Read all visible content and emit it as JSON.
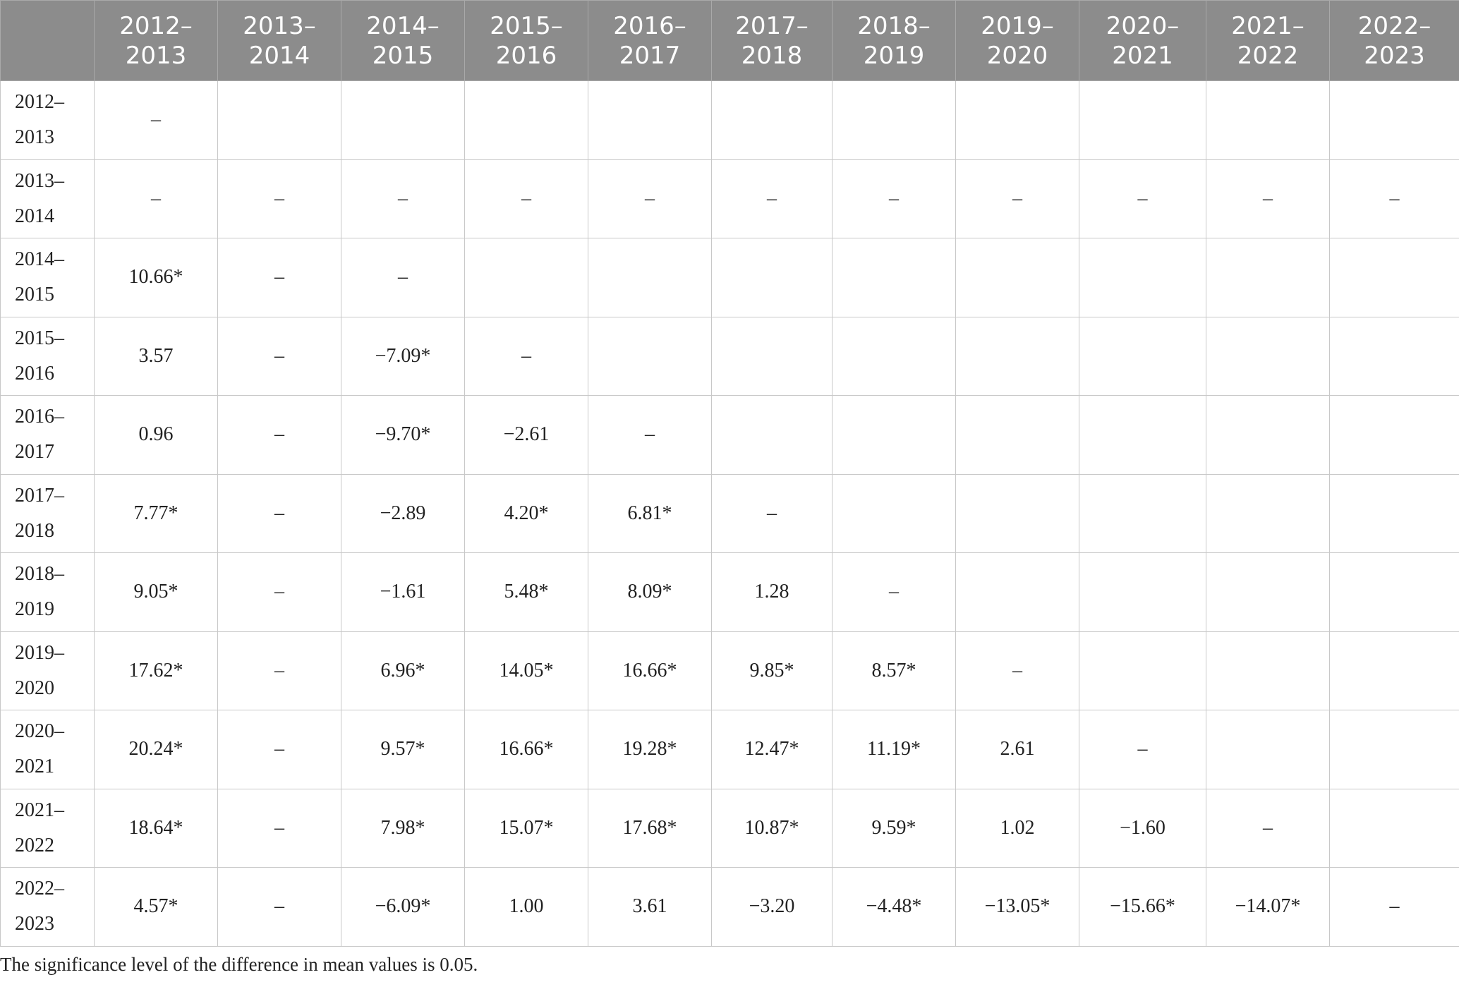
{
  "columns": [
    {
      "a": "",
      "b": ""
    },
    {
      "a": "2012–",
      "b": "2013"
    },
    {
      "a": "2013–",
      "b": "2014"
    },
    {
      "a": "2014–",
      "b": "2015"
    },
    {
      "a": "2015–",
      "b": "2016"
    },
    {
      "a": "2016–",
      "b": "2017"
    },
    {
      "a": "2017–",
      "b": "2018"
    },
    {
      "a": "2018–",
      "b": "2019"
    },
    {
      "a": "2019–",
      "b": "2020"
    },
    {
      "a": "2020–",
      "b": "2021"
    },
    {
      "a": "2021–",
      "b": "2022"
    },
    {
      "a": "2022–",
      "b": "2023"
    }
  ],
  "rows": [
    {
      "label_a": "2012–",
      "label_b": "2013",
      "cells": [
        "–",
        "",
        "",
        "",
        "",
        "",
        "",
        "",
        "",
        "",
        ""
      ]
    },
    {
      "label_a": "2013–",
      "label_b": "2014",
      "cells": [
        "–",
        "–",
        "–",
        "–",
        "–",
        "–",
        "–",
        "–",
        "–",
        "–",
        "–"
      ]
    },
    {
      "label_a": "2014–",
      "label_b": "2015",
      "cells": [
        "10.66*",
        "–",
        "–",
        "",
        "",
        "",
        "",
        "",
        "",
        "",
        ""
      ]
    },
    {
      "label_a": "2015–",
      "label_b": "2016",
      "cells": [
        "3.57",
        "–",
        "−7.09*",
        "–",
        "",
        "",
        "",
        "",
        "",
        "",
        ""
      ]
    },
    {
      "label_a": "2016–",
      "label_b": "2017",
      "cells": [
        "0.96",
        "–",
        "−9.70*",
        "−2.61",
        "–",
        "",
        "",
        "",
        "",
        "",
        ""
      ]
    },
    {
      "label_a": "2017–",
      "label_b": "2018",
      "cells": [
        "7.77*",
        "–",
        "−2.89",
        "4.20*",
        "6.81*",
        "–",
        "",
        "",
        "",
        "",
        ""
      ]
    },
    {
      "label_a": "2018–",
      "label_b": "2019",
      "cells": [
        "9.05*",
        "–",
        "−1.61",
        "5.48*",
        "8.09*",
        "1.28",
        "–",
        "",
        "",
        "",
        ""
      ]
    },
    {
      "label_a": "2019–",
      "label_b": "2020",
      "cells": [
        "17.62*",
        "–",
        "6.96*",
        "14.05*",
        "16.66*",
        "9.85*",
        "8.57*",
        "–",
        "",
        "",
        ""
      ]
    },
    {
      "label_a": "2020–",
      "label_b": "2021",
      "cells": [
        "20.24*",
        "–",
        "9.57*",
        "16.66*",
        "19.28*",
        "12.47*",
        "11.19*",
        "2.61",
        "–",
        "",
        ""
      ]
    },
    {
      "label_a": "2021–",
      "label_b": "2022",
      "cells": [
        "18.64*",
        "–",
        "7.98*",
        "15.07*",
        "17.68*",
        "10.87*",
        "9.59*",
        "1.02",
        "−1.60",
        "–",
        ""
      ]
    },
    {
      "label_a": "2022–",
      "label_b": "2023",
      "cells": [
        "4.57*",
        "–",
        "−6.09*",
        "1.00",
        "3.61",
        "−3.20",
        "−4.48*",
        "−13.05*",
        "−15.66*",
        "−14.07*",
        "–"
      ]
    }
  ],
  "footnote": "The significance level of the difference in mean values is 0.05."
}
